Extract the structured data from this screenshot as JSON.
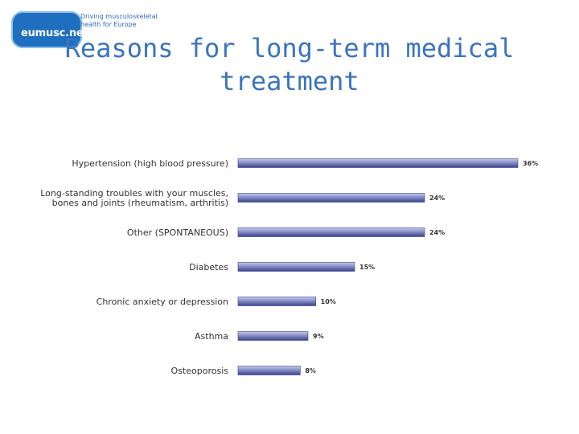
{
  "logo": {
    "badge_text": "eumusc.net",
    "tagline": [
      "Driving musculoskeletal",
      "health for Europe"
    ]
  },
  "title_lines": [
    "Reasons for long-term medical",
    "treatment"
  ],
  "colors": {
    "title": "#3a73c2",
    "bar_dark": "#3b438f",
    "bar_light": "#c4cbee"
  },
  "chart_data": {
    "type": "bar",
    "orientation": "horizontal",
    "categories": [
      [
        "Hypertension (high blood pressure)"
      ],
      [
        "Long-standing troubles with your muscles,",
        "bones and joints (rheumatism, arthritis)"
      ],
      [
        "Other (SPONTANEOUS)"
      ],
      [
        "Diabetes"
      ],
      [
        "Chronic anxiety or depression"
      ],
      [
        "Asthma"
      ],
      [
        "Osteoporosis"
      ]
    ],
    "values": [
      36,
      24,
      24,
      15,
      10,
      9,
      8
    ],
    "value_labels": [
      "36%",
      "24%",
      "24%",
      "15%",
      "10%",
      "9%",
      "8%"
    ],
    "unit": "%",
    "xlim": [
      0,
      36
    ],
    "grid": false,
    "legend": false
  }
}
